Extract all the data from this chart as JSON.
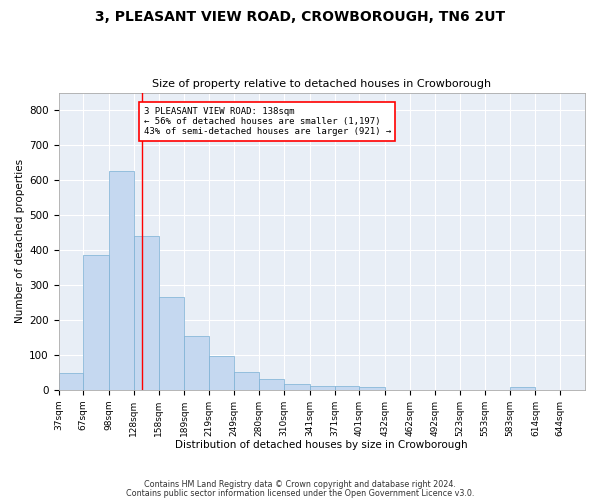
{
  "title": "3, PLEASANT VIEW ROAD, CROWBOROUGH, TN6 2UT",
  "subtitle": "Size of property relative to detached houses in Crowborough",
  "xlabel": "Distribution of detached houses by size in Crowborough",
  "ylabel": "Number of detached properties",
  "bin_edges": [
    37,
    67,
    98,
    128,
    158,
    189,
    219,
    249,
    280,
    310,
    341,
    371,
    401,
    432,
    462,
    492,
    523,
    553,
    583,
    614,
    644,
    674
  ],
  "bar_heights": [
    48,
    385,
    625,
    440,
    265,
    155,
    97,
    52,
    30,
    15,
    11,
    11,
    8,
    0,
    0,
    0,
    0,
    0,
    8,
    0,
    0
  ],
  "tick_labels": [
    "37sqm",
    "67sqm",
    "98sqm",
    "128sqm",
    "158sqm",
    "189sqm",
    "219sqm",
    "249sqm",
    "280sqm",
    "310sqm",
    "341sqm",
    "371sqm",
    "401sqm",
    "432sqm",
    "462sqm",
    "492sqm",
    "523sqm",
    "553sqm",
    "583sqm",
    "614sqm",
    "644sqm"
  ],
  "bar_color": "#c5d8f0",
  "bar_edge_color": "#7ab0d4",
  "background_color": "#e8eef6",
  "red_line_x": 138,
  "annotation_text": "3 PLEASANT VIEW ROAD: 138sqm\n← 56% of detached houses are smaller (1,197)\n43% of semi-detached houses are larger (921) →",
  "annotation_box_color": "white",
  "annotation_border_color": "red",
  "ylim": [
    0,
    850
  ],
  "yticks": [
    0,
    100,
    200,
    300,
    400,
    500,
    600,
    700,
    800
  ],
  "footer_line1": "Contains HM Land Registry data © Crown copyright and database right 2024.",
  "footer_line2": "Contains public sector information licensed under the Open Government Licence v3.0."
}
